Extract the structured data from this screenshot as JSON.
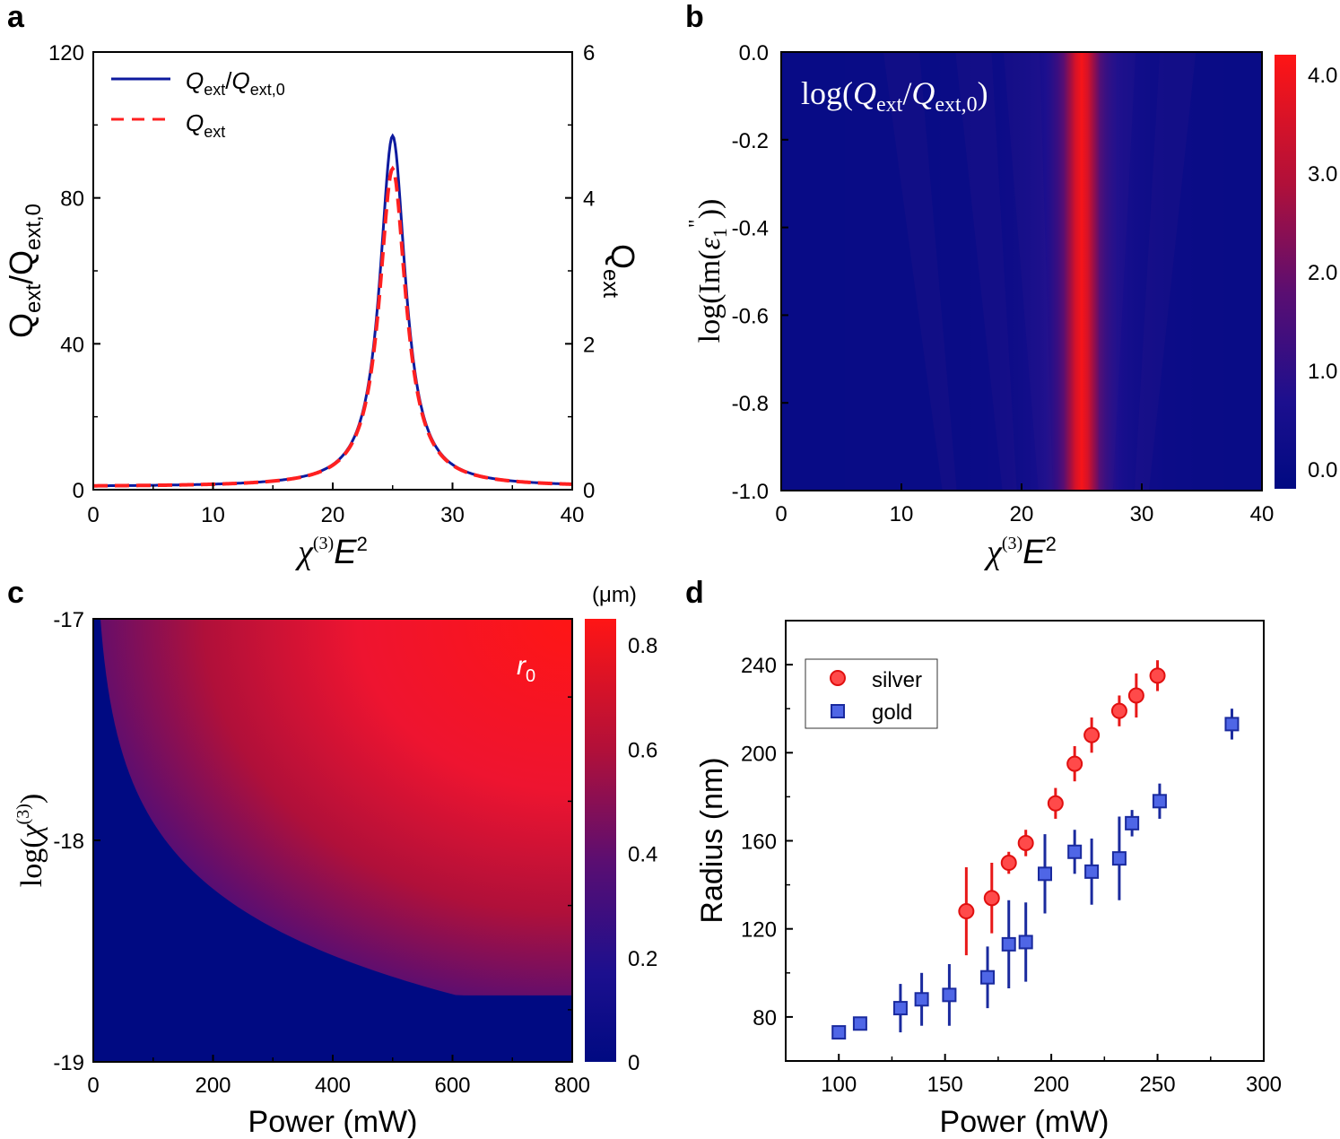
{
  "figure": {
    "panels": [
      "a",
      "b",
      "c",
      "d"
    ]
  },
  "chart_data": [
    {
      "panel": "a",
      "type": "line",
      "xlabel_symbol": "χ",
      "xlabel_sup": "(3)",
      "xlabel_E": "E",
      "xlabel_exp": "2",
      "ylabel_left": "Qext/Qext,0",
      "ylabel_right": "Qext",
      "xlim": [
        0,
        40
      ],
      "ylim_left": [
        0,
        120
      ],
      "ylim_right": [
        0,
        6
      ],
      "xticks": [
        "0",
        "10",
        "20",
        "30",
        "40"
      ],
      "yticks_left": [
        "0",
        "40",
        "80",
        "120"
      ],
      "yticks_right": [
        "0",
        "2",
        "4",
        "6"
      ],
      "series": [
        {
          "name": "Qext/Qext,0",
          "axis": "left",
          "style": "solid",
          "color": "#0d1a9e",
          "peak_x": 25,
          "peak_y": 97,
          "hwhm": 1.3,
          "baseline": 0.8
        },
        {
          "name": "Qext",
          "axis": "right",
          "style": "dashed",
          "color": "#ff2020",
          "peak_x": 25,
          "peak_y": 4.4,
          "hwhm": 1.35,
          "baseline": 0.04
        }
      ],
      "legend": [
        {
          "main": "Q",
          "sub": "ext",
          "slash": "/",
          "main2": "Q",
          "sub2": "ext,0"
        },
        {
          "main": "Q",
          "sub": "ext"
        }
      ]
    },
    {
      "panel": "b",
      "type": "heatmap",
      "title_text": "log(Qext/Qext,0)",
      "xlim": [
        0,
        40
      ],
      "ylim": [
        -1.0,
        0.0
      ],
      "xticks": [
        "0",
        "10",
        "20",
        "30",
        "40"
      ],
      "yticks": [
        "0.0",
        "-0.2",
        "-0.4",
        "-0.6",
        "-0.8",
        "-1.0"
      ],
      "ylabel": "log(Im(ε1″))",
      "colorbar_ticks": [
        "0.0",
        "1.0",
        "2.0",
        "3.0",
        "4.0"
      ],
      "colorbar_range": [
        -0.2,
        4.2
      ],
      "peak_x": 25,
      "peak_value": 4.0
    },
    {
      "panel": "c",
      "type": "heatmap",
      "xlabel": "Power (mW)",
      "ylabel": "log(χ(3))",
      "xlim": [
        0,
        800
      ],
      "ylim": [
        -19,
        -17
      ],
      "xticks": [
        "0",
        "200",
        "400",
        "600",
        "800"
      ],
      "yticks": [
        "-17",
        "-18",
        "-19"
      ],
      "colorbar_unit": "(μm)",
      "colorbar_ticks": [
        "0",
        "0.2",
        "0.4",
        "0.6",
        "0.8"
      ],
      "colorbar_range": [
        0,
        0.85
      ],
      "annotation_main": "r",
      "annotation_sub": "0"
    },
    {
      "panel": "d",
      "type": "scatter",
      "xlabel": "Power (mW)",
      "ylabel": "Radius (nm)",
      "xlim": [
        75,
        300
      ],
      "ylim": [
        60,
        260
      ],
      "xticks": [
        "100",
        "150",
        "200",
        "250",
        "300"
      ],
      "yticks": [
        "80",
        "120",
        "160",
        "200",
        "240"
      ],
      "series": [
        {
          "name": "silver",
          "marker": "circle",
          "color": "#ff4a4a",
          "points": [
            {
              "x": 160,
              "y": 128,
              "err": 20
            },
            {
              "x": 172,
              "y": 134,
              "err": 16
            },
            {
              "x": 180,
              "y": 150,
              "err": 5
            },
            {
              "x": 188,
              "y": 159,
              "err": 6
            },
            {
              "x": 202,
              "y": 177,
              "err": 7
            },
            {
              "x": 211,
              "y": 195,
              "err": 8
            },
            {
              "x": 219,
              "y": 208,
              "err": 8
            },
            {
              "x": 232,
              "y": 219,
              "err": 7
            },
            {
              "x": 240,
              "y": 226,
              "err": 10
            },
            {
              "x": 250,
              "y": 235,
              "err": 7
            }
          ]
        },
        {
          "name": "gold",
          "marker": "square",
          "color": "#4f66e6",
          "points": [
            {
              "x": 100,
              "y": 73,
              "err": 3
            },
            {
              "x": 110,
              "y": 77,
              "err": 3
            },
            {
              "x": 129,
              "y": 84,
              "err": 11
            },
            {
              "x": 139,
              "y": 88,
              "err": 12
            },
            {
              "x": 152,
              "y": 90,
              "err": 14
            },
            {
              "x": 170,
              "y": 98,
              "err": 14
            },
            {
              "x": 180,
              "y": 113,
              "err": 20
            },
            {
              "x": 188,
              "y": 114,
              "err": 18
            },
            {
              "x": 197,
              "y": 145,
              "err": 18
            },
            {
              "x": 211,
              "y": 155,
              "err": 10
            },
            {
              "x": 219,
              "y": 146,
              "err": 15
            },
            {
              "x": 232,
              "y": 152,
              "err": 19
            },
            {
              "x": 238,
              "y": 168,
              "err": 6
            },
            {
              "x": 251,
              "y": 178,
              "err": 8
            },
            {
              "x": 285,
              "y": 213,
              "err": 7
            }
          ]
        }
      ]
    }
  ]
}
